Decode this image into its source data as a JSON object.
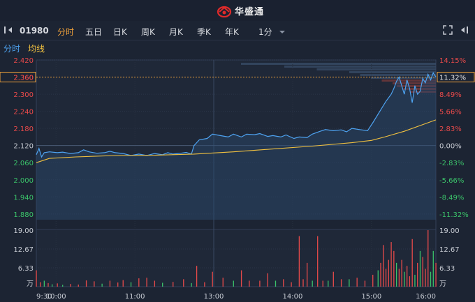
{
  "header": {
    "logo_text": "华盛通"
  },
  "toolbar": {
    "stock_code": "01980",
    "tabs": [
      "分时",
      "五日",
      "日K",
      "周K",
      "月K",
      "季K",
      "年K"
    ],
    "active_tab": "分时",
    "interval": "1分",
    "icons": [
      "toggle-sidebar-icon",
      "chevron-down-icon",
      "fullscreen-icon",
      "collapse-panel-icon"
    ]
  },
  "legend": {
    "price_label": "分时",
    "avg_label": "均线"
  },
  "colors": {
    "price_line": "#4ea3f1",
    "avg_line": "#f0c040",
    "up": "#e84a4a",
    "down": "#3bc36a",
    "bg": "#1c2433",
    "ref_line": "#f0a23b"
  },
  "chart_data": {
    "type": "line",
    "prev_close": 2.12,
    "current_price_tag": "2.360",
    "current_pct_tag": "11.32%",
    "price_ticks": [
      "2.420",
      "2.360",
      "2.300",
      "2.240",
      "2.180",
      "2.120",
      "2.060",
      "2.000",
      "1.940",
      "1.880"
    ],
    "pct_ticks": [
      "14.15%",
      "11.32%",
      "8.49%",
      "5.66%",
      "2.83%",
      "0.00%",
      "-2.83%",
      "-5.66%",
      "-8.49%",
      "-11.32%"
    ],
    "ylim": [
      1.86,
      2.42
    ],
    "volume_ticks": [
      "19.00",
      "12.67",
      "6.33",
      "万"
    ],
    "volume_ylim": [
      0,
      19
    ],
    "x_ticks": [
      "9:30",
      "10:00",
      "11:00",
      "13:00",
      "14:00",
      "15:00",
      "16:00"
    ],
    "price_series": [
      [
        0,
        2.088
      ],
      [
        2,
        2.11
      ],
      [
        4,
        2.08
      ],
      [
        6,
        2.095
      ],
      [
        10,
        2.098
      ],
      [
        16,
        2.095
      ],
      [
        20,
        2.097
      ],
      [
        26,
        2.092
      ],
      [
        32,
        2.095
      ],
      [
        36,
        2.105
      ],
      [
        40,
        2.098
      ],
      [
        46,
        2.093
      ],
      [
        52,
        2.095
      ],
      [
        56,
        2.1
      ],
      [
        60,
        2.095
      ],
      [
        66,
        2.092
      ],
      [
        72,
        2.085
      ],
      [
        78,
        2.09
      ],
      [
        84,
        2.085
      ],
      [
        90,
        2.092
      ],
      [
        96,
        2.088
      ],
      [
        100,
        2.095
      ],
      [
        104,
        2.09
      ],
      [
        110,
        2.093
      ],
      [
        114,
        2.096
      ],
      [
        118,
        2.09
      ],
      [
        120,
        2.12
      ],
      [
        124,
        2.14
      ],
      [
        130,
        2.145
      ],
      [
        134,
        2.16
      ],
      [
        140,
        2.155
      ],
      [
        146,
        2.15
      ],
      [
        150,
        2.16
      ],
      [
        156,
        2.15
      ],
      [
        160,
        2.16
      ],
      [
        166,
        2.158
      ],
      [
        170,
        2.162
      ],
      [
        176,
        2.152
      ],
      [
        180,
        2.155
      ],
      [
        186,
        2.15
      ],
      [
        190,
        2.157
      ],
      [
        196,
        2.145
      ],
      [
        200,
        2.15
      ],
      [
        206,
        2.148
      ],
      [
        210,
        2.16
      ],
      [
        216,
        2.17
      ],
      [
        220,
        2.176
      ],
      [
        226,
        2.172
      ],
      [
        232,
        2.175
      ],
      [
        236,
        2.168
      ],
      [
        240,
        2.18
      ],
      [
        246,
        2.176
      ],
      [
        252,
        2.172
      ],
      [
        256,
        2.2
      ],
      [
        262,
        2.245
      ],
      [
        266,
        2.275
      ],
      [
        270,
        2.3
      ],
      [
        272,
        2.32
      ],
      [
        274,
        2.345
      ],
      [
        276,
        2.36
      ],
      [
        278,
        2.33
      ],
      [
        280,
        2.3
      ],
      [
        282,
        2.35
      ],
      [
        284,
        2.32
      ],
      [
        286,
        2.27
      ],
      [
        288,
        2.33
      ],
      [
        290,
        2.3
      ],
      [
        292,
        2.31
      ],
      [
        294,
        2.355
      ],
      [
        296,
        2.34
      ],
      [
        298,
        2.37
      ],
      [
        300,
        2.35
      ],
      [
        302,
        2.375
      ],
      [
        304,
        2.36
      ]
    ],
    "avg_series": [
      [
        0,
        2.06
      ],
      [
        10,
        2.075
      ],
      [
        30,
        2.08
      ],
      [
        60,
        2.085
      ],
      [
        90,
        2.086
      ],
      [
        120,
        2.09
      ],
      [
        150,
        2.098
      ],
      [
        180,
        2.108
      ],
      [
        210,
        2.118
      ],
      [
        240,
        2.13
      ],
      [
        255,
        2.138
      ],
      [
        265,
        2.15
      ],
      [
        280,
        2.17
      ],
      [
        295,
        2.195
      ],
      [
        304,
        2.21
      ]
    ],
    "volume": [
      {
        "t": 0,
        "v": 5.5,
        "up": true
      },
      {
        "t": 3,
        "v": 1.5,
        "up": true
      },
      {
        "t": 6,
        "v": 2.0,
        "up": false
      },
      {
        "t": 9,
        "v": 1.2,
        "up": true
      },
      {
        "t": 12,
        "v": 0.8,
        "up": false
      },
      {
        "t": 16,
        "v": 1.1,
        "up": true
      },
      {
        "t": 20,
        "v": 0.6,
        "up": false
      },
      {
        "t": 26,
        "v": 0.9,
        "up": true
      },
      {
        "t": 32,
        "v": 0.7,
        "up": true
      },
      {
        "t": 38,
        "v": 2.1,
        "up": true
      },
      {
        "t": 44,
        "v": 1.8,
        "up": true
      },
      {
        "t": 50,
        "v": 1.0,
        "up": false
      },
      {
        "t": 56,
        "v": 2.0,
        "up": true
      },
      {
        "t": 62,
        "v": 1.4,
        "up": true
      },
      {
        "t": 66,
        "v": 2.2,
        "up": true
      },
      {
        "t": 72,
        "v": 1.5,
        "up": false
      },
      {
        "t": 78,
        "v": 2.8,
        "up": true
      },
      {
        "t": 84,
        "v": 3.0,
        "up": true
      },
      {
        "t": 90,
        "v": 2.0,
        "up": true
      },
      {
        "t": 96,
        "v": 1.3,
        "up": false
      },
      {
        "t": 104,
        "v": 1.6,
        "up": true
      },
      {
        "t": 112,
        "v": 2.5,
        "up": true
      },
      {
        "t": 118,
        "v": 1.2,
        "up": false
      },
      {
        "t": 122,
        "v": 7.0,
        "up": true
      },
      {
        "t": 128,
        "v": 1.5,
        "up": true
      },
      {
        "t": 134,
        "v": 5.0,
        "up": true
      },
      {
        "t": 142,
        "v": 3.0,
        "up": true
      },
      {
        "t": 150,
        "v": 2.0,
        "up": false
      },
      {
        "t": 156,
        "v": 5.5,
        "up": true
      },
      {
        "t": 162,
        "v": 2.0,
        "up": true
      },
      {
        "t": 170,
        "v": 2.0,
        "up": true
      },
      {
        "t": 176,
        "v": 4.5,
        "up": true
      },
      {
        "t": 182,
        "v": 2.0,
        "up": false
      },
      {
        "t": 188,
        "v": 2.5,
        "up": true
      },
      {
        "t": 194,
        "v": 1.5,
        "up": true
      },
      {
        "t": 200,
        "v": 17.0,
        "up": true
      },
      {
        "t": 203,
        "v": 2.5,
        "up": true
      },
      {
        "t": 206,
        "v": 8.0,
        "up": true
      },
      {
        "t": 210,
        "v": 2.0,
        "up": false
      },
      {
        "t": 214,
        "v": 17.0,
        "up": true
      },
      {
        "t": 218,
        "v": 2.0,
        "up": true
      },
      {
        "t": 222,
        "v": 2.0,
        "up": false
      },
      {
        "t": 226,
        "v": 5.0,
        "up": true
      },
      {
        "t": 232,
        "v": 2.5,
        "up": true
      },
      {
        "t": 238,
        "v": 2.5,
        "up": false
      },
      {
        "t": 244,
        "v": 3.0,
        "up": true
      },
      {
        "t": 250,
        "v": 2.0,
        "up": true
      },
      {
        "t": 256,
        "v": 4.0,
        "up": true
      },
      {
        "t": 260,
        "v": 5.5,
        "up": false
      },
      {
        "t": 262,
        "v": 8.0,
        "up": true
      },
      {
        "t": 264,
        "v": 14.0,
        "up": true
      },
      {
        "t": 266,
        "v": 6.0,
        "up": true
      },
      {
        "t": 268,
        "v": 9.0,
        "up": true
      },
      {
        "t": 270,
        "v": 15.0,
        "up": true
      },
      {
        "t": 272,
        "v": 12.0,
        "up": true
      },
      {
        "t": 274,
        "v": 8.0,
        "up": false
      },
      {
        "t": 276,
        "v": 6.0,
        "up": true
      },
      {
        "t": 278,
        "v": 9.0,
        "up": true
      },
      {
        "t": 280,
        "v": 5.0,
        "up": false
      },
      {
        "t": 282,
        "v": 7.0,
        "up": true
      },
      {
        "t": 284,
        "v": 3.5,
        "up": true
      },
      {
        "t": 286,
        "v": 16.0,
        "up": true
      },
      {
        "t": 288,
        "v": 4.0,
        "up": false
      },
      {
        "t": 290,
        "v": 8.0,
        "up": true
      },
      {
        "t": 292,
        "v": 12.0,
        "up": false
      },
      {
        "t": 294,
        "v": 10.0,
        "up": true
      },
      {
        "t": 296,
        "v": 6.0,
        "up": true
      },
      {
        "t": 298,
        "v": 19.0,
        "up": true
      },
      {
        "t": 300,
        "v": 5.0,
        "up": false
      },
      {
        "t": 302,
        "v": 12.0,
        "up": false
      },
      {
        "t": 304,
        "v": 8.0,
        "up": true
      }
    ],
    "order_book_depth": [
      0.9,
      0.7,
      0.55,
      0.4,
      0.35,
      0.3,
      0.25,
      0.2,
      0.18,
      0.15,
      0.12
    ]
  }
}
